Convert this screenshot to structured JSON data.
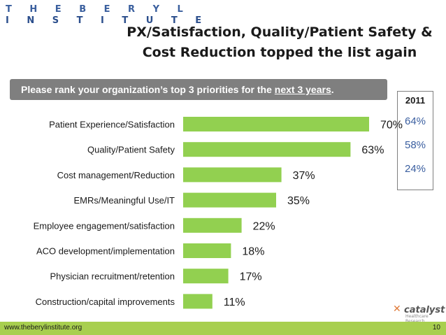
{
  "logo": {
    "line1": "T H E   B E R Y L",
    "line2": "I N S T I T U T E"
  },
  "title": {
    "line1": "PX/Satisfaction, Quality/Patient Safety &",
    "line2": "Cost Reduction topped the list again"
  },
  "question": {
    "prefix": "Please rank your organization’s top 3 priorities for the ",
    "emphasis": "next 3 years",
    "suffix": "."
  },
  "comparison": {
    "year": "2011",
    "values": [
      "64%",
      "58%",
      "24%"
    ]
  },
  "footer": {
    "url": "www.theberylinstitute.org",
    "page": "10"
  },
  "brand": {
    "name": "catalyst",
    "tagline": "Healthcare Research"
  },
  "colors": {
    "bar": "#92d050",
    "footer": "#a8cf4f",
    "accent": "#3b5fa0"
  },
  "chart_data": {
    "type": "bar",
    "orientation": "horizontal",
    "categories": [
      "Patient Experience/Satisfaction",
      "Quality/Patient Safety",
      "Cost management/Reduction",
      "EMRs/Meaningful Use/IT",
      "Employee engagement/satisfaction",
      "ACO development/implementation",
      "Physician recruitment/retention",
      "Construction/capital improvements"
    ],
    "values": [
      70,
      63,
      37,
      35,
      22,
      18,
      17,
      11
    ],
    "value_labels": [
      "70%",
      "63%",
      "37%",
      "35%",
      "22%",
      "18%",
      "17%",
      "11%"
    ],
    "unit": "%",
    "xlim": [
      0,
      70
    ],
    "title": "",
    "xlabel": "",
    "ylabel": ""
  }
}
